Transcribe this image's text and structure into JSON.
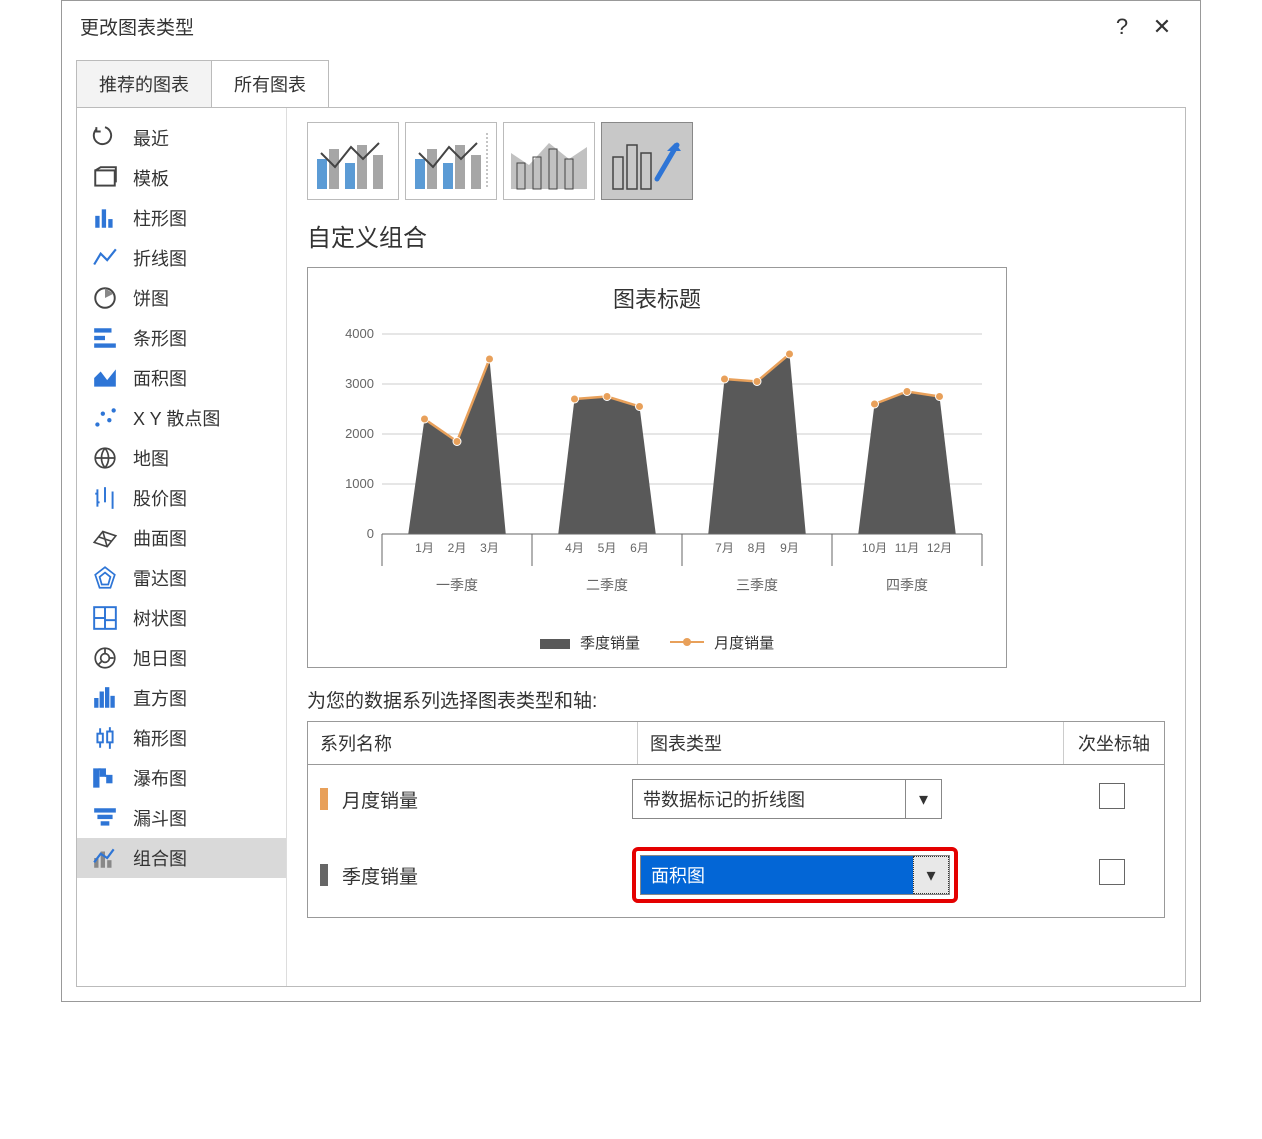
{
  "dialog": {
    "title": "更改图表类型",
    "help": "?",
    "close": "✕"
  },
  "tabs": {
    "recommended": "推荐的图表",
    "all": "所有图表"
  },
  "sidebar": [
    {
      "id": "recent",
      "label": "最近"
    },
    {
      "id": "template",
      "label": "模板"
    },
    {
      "id": "column",
      "label": "柱形图"
    },
    {
      "id": "line",
      "label": "折线图"
    },
    {
      "id": "pie",
      "label": "饼图"
    },
    {
      "id": "bar",
      "label": "条形图"
    },
    {
      "id": "area",
      "label": "面积图"
    },
    {
      "id": "scatter",
      "label": "X Y 散点图"
    },
    {
      "id": "map",
      "label": "地图"
    },
    {
      "id": "stock",
      "label": "股价图"
    },
    {
      "id": "surface",
      "label": "曲面图"
    },
    {
      "id": "radar",
      "label": "雷达图"
    },
    {
      "id": "treemap",
      "label": "树状图"
    },
    {
      "id": "sunburst",
      "label": "旭日图"
    },
    {
      "id": "histogram",
      "label": "直方图"
    },
    {
      "id": "boxwhisker",
      "label": "箱形图"
    },
    {
      "id": "waterfall",
      "label": "瀑布图"
    },
    {
      "id": "funnel",
      "label": "漏斗图"
    },
    {
      "id": "combo",
      "label": "组合图"
    }
  ],
  "main": {
    "section_title": "自定义组合",
    "series_prompt": "为您的数据系列选择图表类型和轴:",
    "table_headers": {
      "name": "系列名称",
      "type": "图表类型",
      "axis": "次坐标轴"
    },
    "series": [
      {
        "swatch": "#e8a05a",
        "name": "月度销量",
        "type_label": "带数据标记的折线图",
        "highlighted": false
      },
      {
        "swatch": "#666666",
        "name": "季度销量",
        "type_label": "面积图",
        "highlighted": true
      }
    ]
  },
  "preview": {
    "title": "图表标题",
    "type": "combo-bar-line",
    "y_axis": {
      "min": 0,
      "max": 4000,
      "ticks": [
        0,
        1000,
        2000,
        3000,
        4000
      ]
    },
    "categories": [
      {
        "label": "一季度",
        "months": [
          "1月",
          "2月",
          "3月"
        ]
      },
      {
        "label": "二季度",
        "months": [
          "4月",
          "5月",
          "6月"
        ]
      },
      {
        "label": "三季度",
        "months": [
          "7月",
          "8月",
          "9月"
        ]
      },
      {
        "label": "四季度",
        "months": [
          "10月",
          "11月",
          "12月"
        ]
      }
    ],
    "bar_values": [
      2300,
      1850,
      3500,
      2700,
      2750,
      2550,
      3100,
      3050,
      3600,
      2600,
      2850,
      2750
    ],
    "line_values": [
      2300,
      1850,
      3500,
      2700,
      2750,
      2550,
      3100,
      3050,
      3600,
      2600,
      2850,
      2750
    ],
    "bar_color": "#595959",
    "line_color": "#e8a05a",
    "marker_color": "#e8a05a",
    "grid_color": "#cccccc",
    "axis_color": "#666666",
    "text_color": "#666666",
    "bar_width_ratio": 0.8,
    "group_gap_ratio": 0.35,
    "legend": {
      "series1": "季度销量",
      "series2": "月度销量"
    }
  },
  "colors": {
    "accent_blue": "#2e75d6",
    "selection_bg": "#d9d9d9",
    "highlight_red": "#e40000"
  }
}
